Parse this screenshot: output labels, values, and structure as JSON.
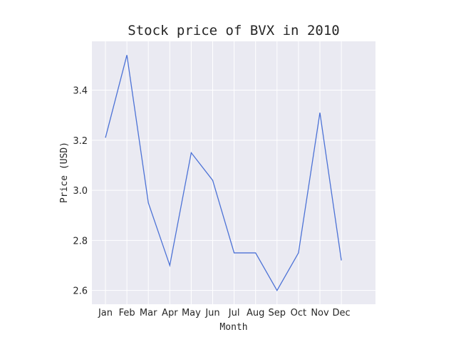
{
  "chart_data": {
    "type": "line",
    "title": "Stock price of BVX in 2010",
    "xlabel": "Month",
    "ylabel": "Price (USD)",
    "categories": [
      "Jan",
      "Feb",
      "Mar",
      "Apr",
      "May",
      "Jun",
      "Jul",
      "Aug",
      "Sep",
      "Oct",
      "Nov",
      "Dec"
    ],
    "values": [
      3.21,
      3.54,
      2.95,
      2.7,
      3.15,
      3.04,
      2.75,
      2.75,
      2.6,
      2.75,
      3.31,
      2.72
    ],
    "ylim": [
      2.545,
      3.595
    ],
    "yticks": [
      2.6,
      2.8,
      3.0,
      3.2,
      3.4
    ],
    "ytick_labels": [
      "2.6",
      "2.8",
      "3.0",
      "3.2",
      "3.4"
    ],
    "grid": true,
    "colors": {
      "line": "#4c72d6",
      "plot_background": "#eaeaf2",
      "grid": "#ffffff"
    }
  }
}
